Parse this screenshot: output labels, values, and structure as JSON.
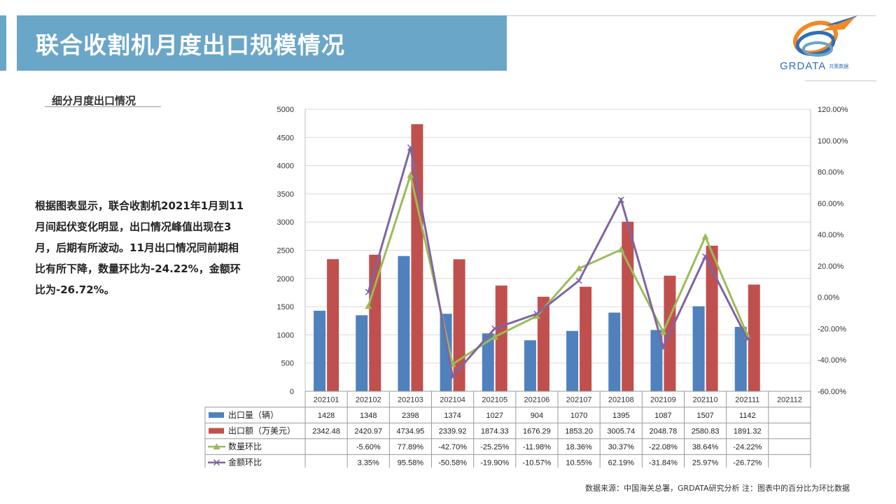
{
  "header": {
    "title": "联合收割机月度出口规模情况"
  },
  "logo": {
    "text": "GRDATA",
    "sub": "共策数据"
  },
  "section": {
    "subtitle": "细分月度出口情况"
  },
  "description": "根据图表显示，联合收割机2021年1月到11月间起伏变化明显，出口情况峰值出现在3月，后期有所波动。11月出口情况同前期相比有所下降，数量环比为-24.22%，金额环比为-26.72%。",
  "footer": {
    "source": "数据来源：中国海关总署，GRDATA研究分析  注：图表中的百分比为环比数据"
  },
  "colors": {
    "title_bar": "#6aa6c8",
    "bar_volume": "#4f81bd",
    "bar_amount": "#c0504d",
    "line_qty": "#9bbb59",
    "line_amt": "#8064a2"
  },
  "chart_data": {
    "type": "bar",
    "categories": [
      "202101",
      "202102",
      "202103",
      "202104",
      "202105",
      "202106",
      "202107",
      "202108",
      "202109",
      "202110",
      "202111",
      "202112"
    ],
    "y_left": {
      "ylim": [
        0,
        5000
      ],
      "ticks": [
        "0",
        "500",
        "1000",
        "1500",
        "2000",
        "2500",
        "3000",
        "3500",
        "4000",
        "4500",
        "5000"
      ]
    },
    "y_right": {
      "ylim": [
        -60,
        120
      ],
      "ticks": [
        "-60.00%",
        "-40.00%",
        "-20.00%",
        "0.00%",
        "20.00%",
        "40.00%",
        "60.00%",
        "80.00%",
        "100.00%",
        "120.00%"
      ]
    },
    "grid": true,
    "legend": "data table below chart",
    "series": [
      {
        "name": "出口量（辆）",
        "type": "bar",
        "axis": "left",
        "values": [
          1428,
          1348,
          2398,
          1374,
          1027,
          904,
          1070,
          1395,
          1087,
          1507,
          1142,
          null
        ],
        "labels": [
          "1428",
          "1348",
          "2398",
          "1374",
          "1027",
          "904",
          "1070",
          "1395",
          "1087",
          "1507",
          "1142",
          ""
        ]
      },
      {
        "name": "出口额（万美元）",
        "type": "bar",
        "axis": "left",
        "values": [
          2342.48,
          2420.97,
          4734.95,
          2339.92,
          1874.33,
          1676.29,
          1853.2,
          3005.74,
          2048.78,
          2580.83,
          1891.32,
          null
        ],
        "labels": [
          "2342.48",
          "2420.97",
          "4734.95",
          "2339.92",
          "1874.33",
          "1676.29",
          "1853.20",
          "3005.74",
          "2048.78",
          "2580.83",
          "1891.32",
          ""
        ]
      },
      {
        "name": "数量环比",
        "type": "line",
        "axis": "right",
        "values": [
          null,
          -5.6,
          77.89,
          -42.7,
          -25.25,
          -11.98,
          18.36,
          30.37,
          -22.08,
          38.64,
          -24.22,
          null
        ],
        "labels": [
          "",
          "-5.60%",
          "77.89%",
          "-42.70%",
          "-25.25%",
          "-11.98%",
          "18.36%",
          "30.37%",
          "-22.08%",
          "38.64%",
          "-24.22%",
          ""
        ]
      },
      {
        "name": "金额环比",
        "type": "line",
        "axis": "right",
        "values": [
          null,
          3.35,
          95.58,
          -50.58,
          -19.9,
          -10.57,
          10.55,
          62.19,
          -31.84,
          25.97,
          -26.72,
          null
        ],
        "labels": [
          "",
          "3.35%",
          "95.58%",
          "-50.58%",
          "-19.90%",
          "-10.57%",
          "10.55%",
          "62.19%",
          "-31.84%",
          "25.97%",
          "-26.72%",
          ""
        ]
      }
    ]
  }
}
